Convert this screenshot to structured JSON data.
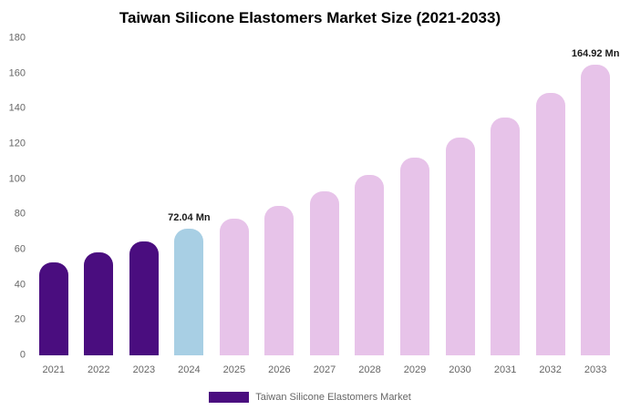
{
  "title": "Taiwan Silicone Elastomers Market Size (2021-2033)",
  "legend": {
    "label": "Taiwan Silicone Elastomers Market",
    "swatch_color": "#4a0d7f"
  },
  "colors": {
    "historical": "#4a0d7f",
    "current": "#a8cfe4",
    "forecast": "#e7c3e9"
  },
  "chart_data": {
    "type": "bar",
    "title": "Taiwan Silicone Elastomers Market Size (2021-2033)",
    "xlabel": "",
    "ylabel": "",
    "ylim": [
      0,
      180
    ],
    "yticks": [
      0,
      20,
      40,
      60,
      80,
      100,
      120,
      140,
      160,
      180
    ],
    "grid": false,
    "legend_position": "bottom",
    "categories": [
      "2021",
      "2022",
      "2023",
      "2024",
      "2025",
      "2026",
      "2027",
      "2028",
      "2029",
      "2030",
      "2031",
      "2032",
      "2033"
    ],
    "values": [
      53,
      58.5,
      64.5,
      72.04,
      77.5,
      85,
      93,
      102.5,
      112.5,
      123.5,
      135,
      149,
      164.92
    ],
    "bar_colors": [
      "#4a0d7f",
      "#4a0d7f",
      "#4a0d7f",
      "#a8cfe4",
      "#e7c3e9",
      "#e7c3e9",
      "#e7c3e9",
      "#e7c3e9",
      "#e7c3e9",
      "#e7c3e9",
      "#e7c3e9",
      "#e7c3e9",
      "#e7c3e9"
    ],
    "annotations": [
      {
        "index": 3,
        "text": "72.04 Mn"
      },
      {
        "index": 12,
        "text": "164.92 Mn"
      }
    ]
  }
}
